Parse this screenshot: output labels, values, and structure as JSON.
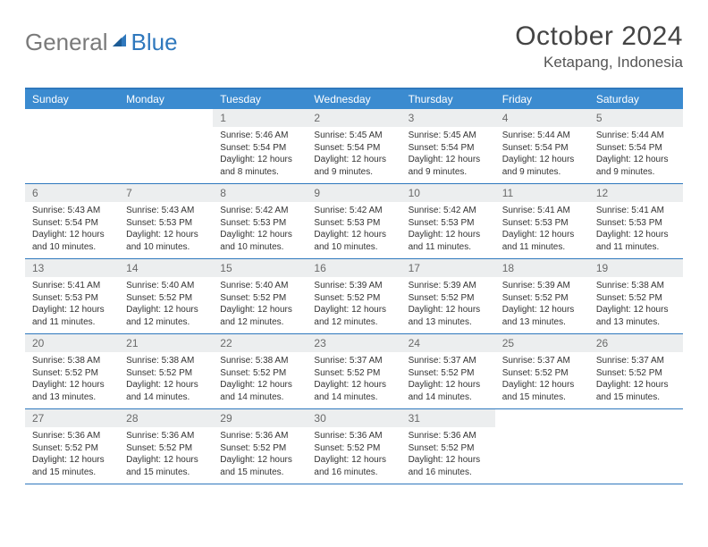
{
  "brand": {
    "word1": "General",
    "word2": "Blue"
  },
  "title": {
    "month": "October 2024",
    "location": "Ketapang, Indonesia"
  },
  "colors": {
    "header_bar": "#3b8bd0",
    "border": "#2f78bd",
    "daynum_bg": "#eceeef",
    "text": "#333333",
    "gray_text": "#7a7a7a"
  },
  "day_labels": [
    "Sunday",
    "Monday",
    "Tuesday",
    "Wednesday",
    "Thursday",
    "Friday",
    "Saturday"
  ],
  "weeks": [
    [
      null,
      null,
      {
        "n": "1",
        "sr": "Sunrise: 5:46 AM",
        "ss": "Sunset: 5:54 PM",
        "dl": "Daylight: 12 hours and 8 minutes."
      },
      {
        "n": "2",
        "sr": "Sunrise: 5:45 AM",
        "ss": "Sunset: 5:54 PM",
        "dl": "Daylight: 12 hours and 9 minutes."
      },
      {
        "n": "3",
        "sr": "Sunrise: 5:45 AM",
        "ss": "Sunset: 5:54 PM",
        "dl": "Daylight: 12 hours and 9 minutes."
      },
      {
        "n": "4",
        "sr": "Sunrise: 5:44 AM",
        "ss": "Sunset: 5:54 PM",
        "dl": "Daylight: 12 hours and 9 minutes."
      },
      {
        "n": "5",
        "sr": "Sunrise: 5:44 AM",
        "ss": "Sunset: 5:54 PM",
        "dl": "Daylight: 12 hours and 9 minutes."
      }
    ],
    [
      {
        "n": "6",
        "sr": "Sunrise: 5:43 AM",
        "ss": "Sunset: 5:54 PM",
        "dl": "Daylight: 12 hours and 10 minutes."
      },
      {
        "n": "7",
        "sr": "Sunrise: 5:43 AM",
        "ss": "Sunset: 5:53 PM",
        "dl": "Daylight: 12 hours and 10 minutes."
      },
      {
        "n": "8",
        "sr": "Sunrise: 5:42 AM",
        "ss": "Sunset: 5:53 PM",
        "dl": "Daylight: 12 hours and 10 minutes."
      },
      {
        "n": "9",
        "sr": "Sunrise: 5:42 AM",
        "ss": "Sunset: 5:53 PM",
        "dl": "Daylight: 12 hours and 10 minutes."
      },
      {
        "n": "10",
        "sr": "Sunrise: 5:42 AM",
        "ss": "Sunset: 5:53 PM",
        "dl": "Daylight: 12 hours and 11 minutes."
      },
      {
        "n": "11",
        "sr": "Sunrise: 5:41 AM",
        "ss": "Sunset: 5:53 PM",
        "dl": "Daylight: 12 hours and 11 minutes."
      },
      {
        "n": "12",
        "sr": "Sunrise: 5:41 AM",
        "ss": "Sunset: 5:53 PM",
        "dl": "Daylight: 12 hours and 11 minutes."
      }
    ],
    [
      {
        "n": "13",
        "sr": "Sunrise: 5:41 AM",
        "ss": "Sunset: 5:53 PM",
        "dl": "Daylight: 12 hours and 11 minutes."
      },
      {
        "n": "14",
        "sr": "Sunrise: 5:40 AM",
        "ss": "Sunset: 5:52 PM",
        "dl": "Daylight: 12 hours and 12 minutes."
      },
      {
        "n": "15",
        "sr": "Sunrise: 5:40 AM",
        "ss": "Sunset: 5:52 PM",
        "dl": "Daylight: 12 hours and 12 minutes."
      },
      {
        "n": "16",
        "sr": "Sunrise: 5:39 AM",
        "ss": "Sunset: 5:52 PM",
        "dl": "Daylight: 12 hours and 12 minutes."
      },
      {
        "n": "17",
        "sr": "Sunrise: 5:39 AM",
        "ss": "Sunset: 5:52 PM",
        "dl": "Daylight: 12 hours and 13 minutes."
      },
      {
        "n": "18",
        "sr": "Sunrise: 5:39 AM",
        "ss": "Sunset: 5:52 PM",
        "dl": "Daylight: 12 hours and 13 minutes."
      },
      {
        "n": "19",
        "sr": "Sunrise: 5:38 AM",
        "ss": "Sunset: 5:52 PM",
        "dl": "Daylight: 12 hours and 13 minutes."
      }
    ],
    [
      {
        "n": "20",
        "sr": "Sunrise: 5:38 AM",
        "ss": "Sunset: 5:52 PM",
        "dl": "Daylight: 12 hours and 13 minutes."
      },
      {
        "n": "21",
        "sr": "Sunrise: 5:38 AM",
        "ss": "Sunset: 5:52 PM",
        "dl": "Daylight: 12 hours and 14 minutes."
      },
      {
        "n": "22",
        "sr": "Sunrise: 5:38 AM",
        "ss": "Sunset: 5:52 PM",
        "dl": "Daylight: 12 hours and 14 minutes."
      },
      {
        "n": "23",
        "sr": "Sunrise: 5:37 AM",
        "ss": "Sunset: 5:52 PM",
        "dl": "Daylight: 12 hours and 14 minutes."
      },
      {
        "n": "24",
        "sr": "Sunrise: 5:37 AM",
        "ss": "Sunset: 5:52 PM",
        "dl": "Daylight: 12 hours and 14 minutes."
      },
      {
        "n": "25",
        "sr": "Sunrise: 5:37 AM",
        "ss": "Sunset: 5:52 PM",
        "dl": "Daylight: 12 hours and 15 minutes."
      },
      {
        "n": "26",
        "sr": "Sunrise: 5:37 AM",
        "ss": "Sunset: 5:52 PM",
        "dl": "Daylight: 12 hours and 15 minutes."
      }
    ],
    [
      {
        "n": "27",
        "sr": "Sunrise: 5:36 AM",
        "ss": "Sunset: 5:52 PM",
        "dl": "Daylight: 12 hours and 15 minutes."
      },
      {
        "n": "28",
        "sr": "Sunrise: 5:36 AM",
        "ss": "Sunset: 5:52 PM",
        "dl": "Daylight: 12 hours and 15 minutes."
      },
      {
        "n": "29",
        "sr": "Sunrise: 5:36 AM",
        "ss": "Sunset: 5:52 PM",
        "dl": "Daylight: 12 hours and 15 minutes."
      },
      {
        "n": "30",
        "sr": "Sunrise: 5:36 AM",
        "ss": "Sunset: 5:52 PM",
        "dl": "Daylight: 12 hours and 16 minutes."
      },
      {
        "n": "31",
        "sr": "Sunrise: 5:36 AM",
        "ss": "Sunset: 5:52 PM",
        "dl": "Daylight: 12 hours and 16 minutes."
      },
      null,
      null
    ]
  ]
}
